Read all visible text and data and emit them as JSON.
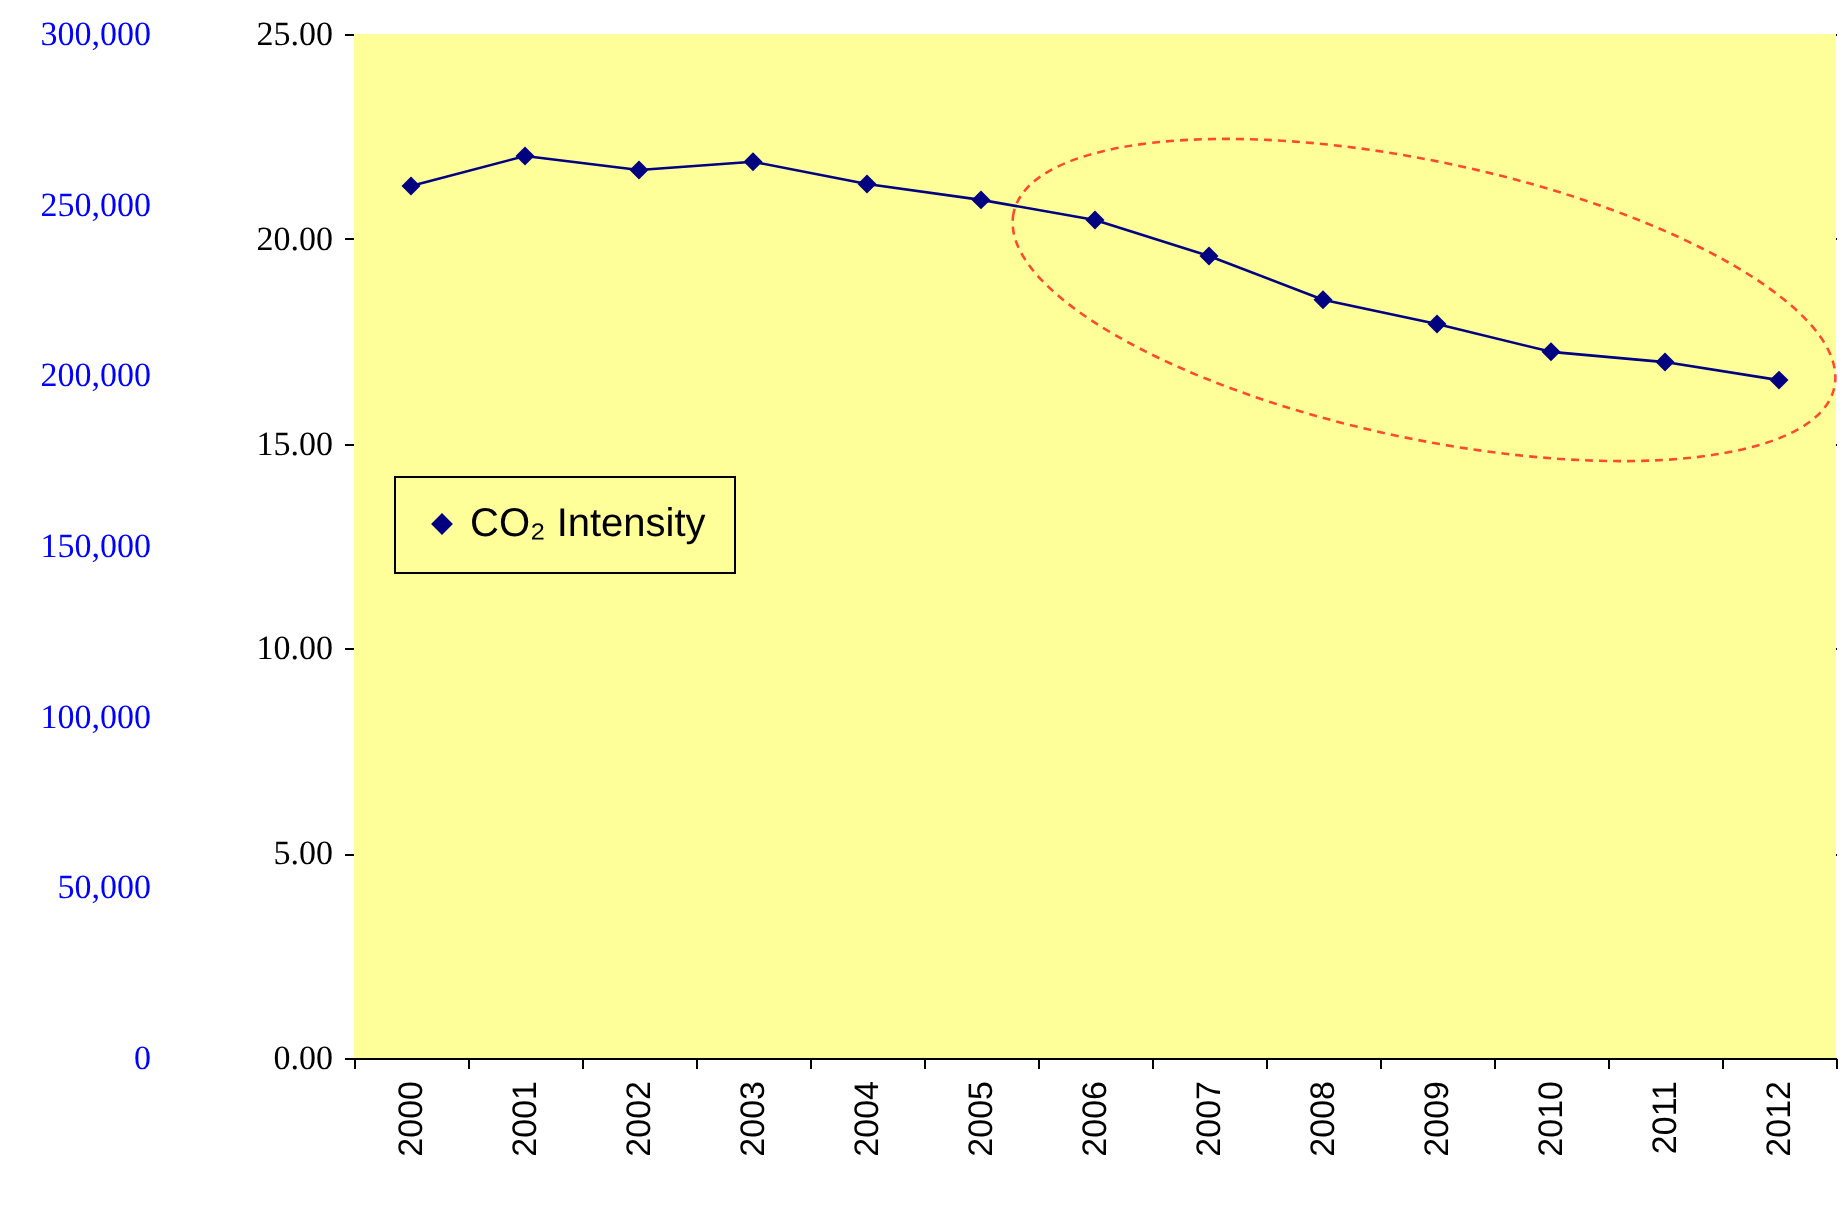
{
  "chart_data": {
    "type": "line",
    "categories": [
      "2000",
      "2001",
      "2002",
      "2003",
      "2004",
      "2005",
      "2006",
      "2007",
      "2008",
      "2009",
      "2010",
      "2011",
      "2012"
    ],
    "series": [
      {
        "name": "CO₂ Intensity",
        "color": "#000080",
        "values": [
          21.29,
          22.02,
          21.68,
          21.88,
          21.34,
          20.95,
          20.46,
          19.58,
          18.51,
          17.92,
          17.24,
          16.99,
          16.55
        ]
      }
    ],
    "ylim": [
      0,
      25
    ],
    "yticks": [
      {
        "value": 0,
        "label": "0.00"
      },
      {
        "value": 5,
        "label": "5.00"
      },
      {
        "value": 10,
        "label": "10.00"
      },
      {
        "value": 15,
        "label": "15.00"
      },
      {
        "value": 20,
        "label": "20.00"
      },
      {
        "value": 25,
        "label": "25.00"
      }
    ],
    "y2lim": [
      0,
      300000
    ],
    "y2ticks": [
      {
        "value": 0,
        "label": "0"
      },
      {
        "value": 50000,
        "label": "50,000"
      },
      {
        "value": 100000,
        "label": "100,000"
      },
      {
        "value": 150000,
        "label": "150,000"
      },
      {
        "value": 200000,
        "label": "200,000"
      },
      {
        "value": 250000,
        "label": "250,000"
      },
      {
        "value": 300000,
        "label": "300,000"
      }
    ],
    "grid": "y",
    "legend": "left",
    "marker": "diamond",
    "line_style": "solid"
  }
}
